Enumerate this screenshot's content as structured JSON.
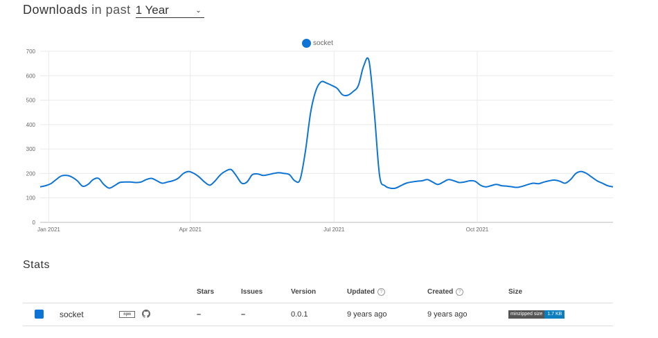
{
  "header": {
    "title_main": "Downloads",
    "title_mid": "in past",
    "period": "1 Year"
  },
  "legend": {
    "label": "socket"
  },
  "chart_data": {
    "type": "line",
    "ylim": [
      0,
      700
    ],
    "yticks": [
      0,
      100,
      200,
      300,
      400,
      500,
      600,
      700
    ],
    "xticks": [
      {
        "label": "Jan 2021",
        "t": 0.015
      },
      {
        "label": "Apr 2021",
        "t": 0.262
      },
      {
        "label": "Jul 2021",
        "t": 0.513
      },
      {
        "label": "Oct 2021",
        "t": 0.763
      }
    ],
    "series": [
      {
        "name": "socket",
        "color": "#0d74d6",
        "values": [
          145,
          150,
          158,
          175,
          190,
          192,
          185,
          170,
          148,
          155,
          175,
          180,
          155,
          140,
          150,
          163,
          165,
          165,
          163,
          165,
          175,
          180,
          170,
          160,
          165,
          170,
          180,
          200,
          208,
          200,
          185,
          165,
          152,
          170,
          195,
          210,
          216,
          190,
          160,
          165,
          195,
          198,
          192,
          195,
          200,
          203,
          200,
          195,
          170,
          175,
          290,
          450,
          540,
          575,
          570,
          560,
          548,
          522,
          520,
          535,
          560,
          640,
          660,
          450,
          190,
          150,
          140,
          140,
          150,
          160,
          165,
          168,
          170,
          175,
          165,
          155,
          165,
          175,
          170,
          163,
          165,
          170,
          168,
          152,
          145,
          150,
          155,
          150,
          148,
          145,
          143,
          148,
          155,
          160,
          158,
          165,
          170,
          173,
          168,
          160,
          175,
          200,
          208,
          200,
          185,
          170,
          160,
          150,
          145
        ]
      }
    ]
  },
  "stats": {
    "title": "Stats",
    "columns": {
      "stars": "Stars",
      "issues": "Issues",
      "version": "Version",
      "updated": "Updated",
      "created": "Created",
      "size": "Size"
    },
    "row": {
      "name": "socket",
      "npm_label": "npm",
      "stars": "–",
      "issues": "–",
      "version": "0.0.1",
      "updated": "9 years ago",
      "created": "9 years ago",
      "size_key": "minzipped size",
      "size_value": "1.7 KB"
    }
  },
  "icons": {
    "npm": "npm-icon",
    "github": "github-icon",
    "help": "question-circle-icon"
  }
}
